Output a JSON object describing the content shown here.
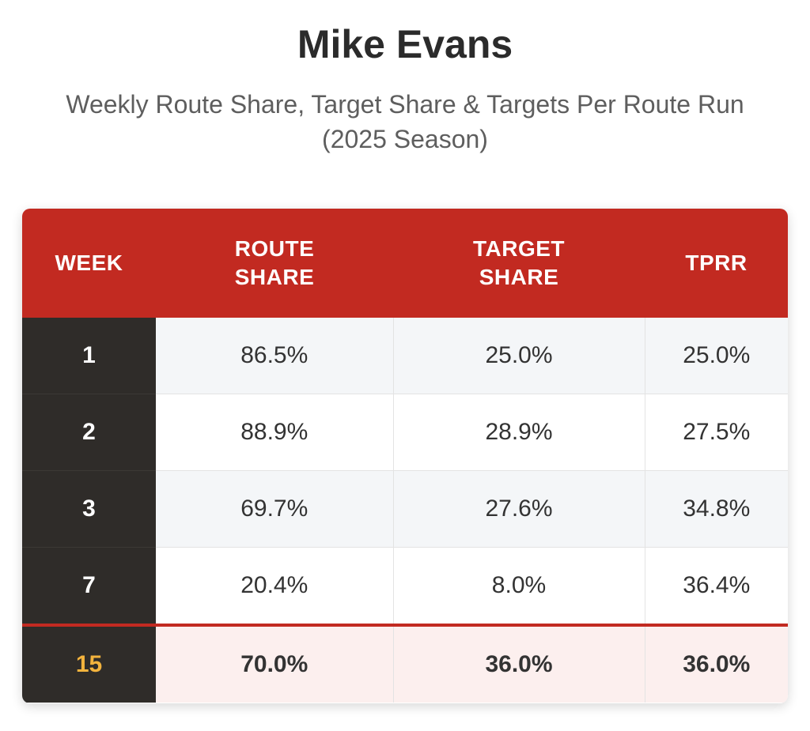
{
  "chart_data": {
    "type": "table",
    "title": "Mike Evans",
    "subtitle": "Weekly Route Share, Target Share & Targets Per Route Run (2025 Season)",
    "columns": [
      "WEEK",
      "ROUTE SHARE",
      "TARGET SHARE",
      "TPRR"
    ],
    "rows": [
      {
        "week": "1",
        "route_share": "86.5%",
        "target_share": "25.0%",
        "tprr": "25.0%"
      },
      {
        "week": "2",
        "route_share": "88.9%",
        "target_share": "28.9%",
        "tprr": "27.5%"
      },
      {
        "week": "3",
        "route_share": "69.7%",
        "target_share": "27.6%",
        "tprr": "34.8%"
      },
      {
        "week": "7",
        "route_share": "20.4%",
        "target_share": "8.0%",
        "tprr": "36.4%"
      },
      {
        "week": "15",
        "route_share": "70.0%",
        "target_share": "36.0%",
        "tprr": "36.0%"
      }
    ],
    "highlight_row": 4,
    "colors": {
      "header": "#c22a21",
      "week_column": "#2f2c29",
      "highlight_week_text": "#f3b33d",
      "highlight_row_bg": "#fcefee"
    }
  }
}
